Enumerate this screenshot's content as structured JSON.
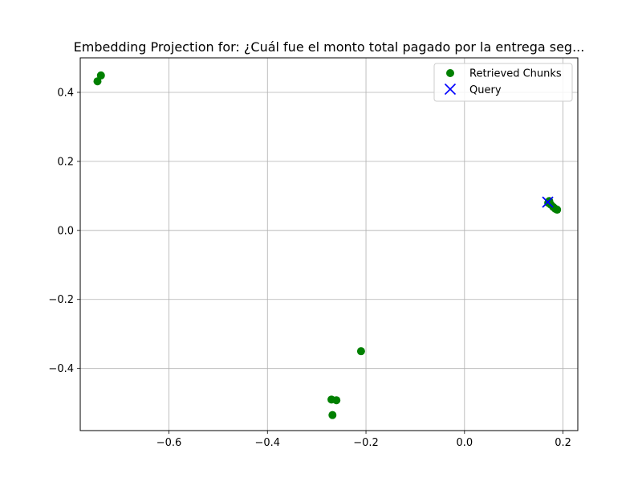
{
  "chart_data": {
    "type": "scatter",
    "title": "Embedding Projection for: ¿Cuál fue el monto total pagado por la entrega seg...",
    "xlabel": "",
    "ylabel": "",
    "xlim": [
      -0.78,
      0.23
    ],
    "ylim": [
      -0.58,
      0.5
    ],
    "x_ticks": [
      -0.6,
      -0.4,
      -0.2,
      0.0,
      0.2
    ],
    "x_tick_labels": [
      "−0.6",
      "−0.4",
      "−0.2",
      "0.0",
      "0.2"
    ],
    "y_ticks": [
      -0.4,
      -0.2,
      0.0,
      0.2,
      0.4
    ],
    "y_tick_labels": [
      "−0.4",
      "−0.2",
      "0.0",
      "0.2",
      "0.4"
    ],
    "grid": true,
    "legend_position": "top-right",
    "series": [
      {
        "name": "Retrieved Chunks",
        "marker": "circle",
        "color": "#008000",
        "points": [
          {
            "x": -0.745,
            "y": 0.432
          },
          {
            "x": -0.738,
            "y": 0.449
          },
          {
            "x": -0.21,
            "y": -0.35
          },
          {
            "x": -0.27,
            "y": -0.49
          },
          {
            "x": -0.26,
            "y": -0.492
          },
          {
            "x": -0.268,
            "y": -0.535
          },
          {
            "x": 0.172,
            "y": 0.085
          },
          {
            "x": 0.17,
            "y": 0.08
          },
          {
            "x": 0.175,
            "y": 0.075
          },
          {
            "x": 0.18,
            "y": 0.068
          },
          {
            "x": 0.184,
            "y": 0.063
          },
          {
            "x": 0.188,
            "y": 0.06
          }
        ]
      },
      {
        "name": "Query",
        "marker": "x",
        "color": "#0000ff",
        "points": [
          {
            "x": 0.169,
            "y": 0.082
          }
        ]
      }
    ]
  }
}
